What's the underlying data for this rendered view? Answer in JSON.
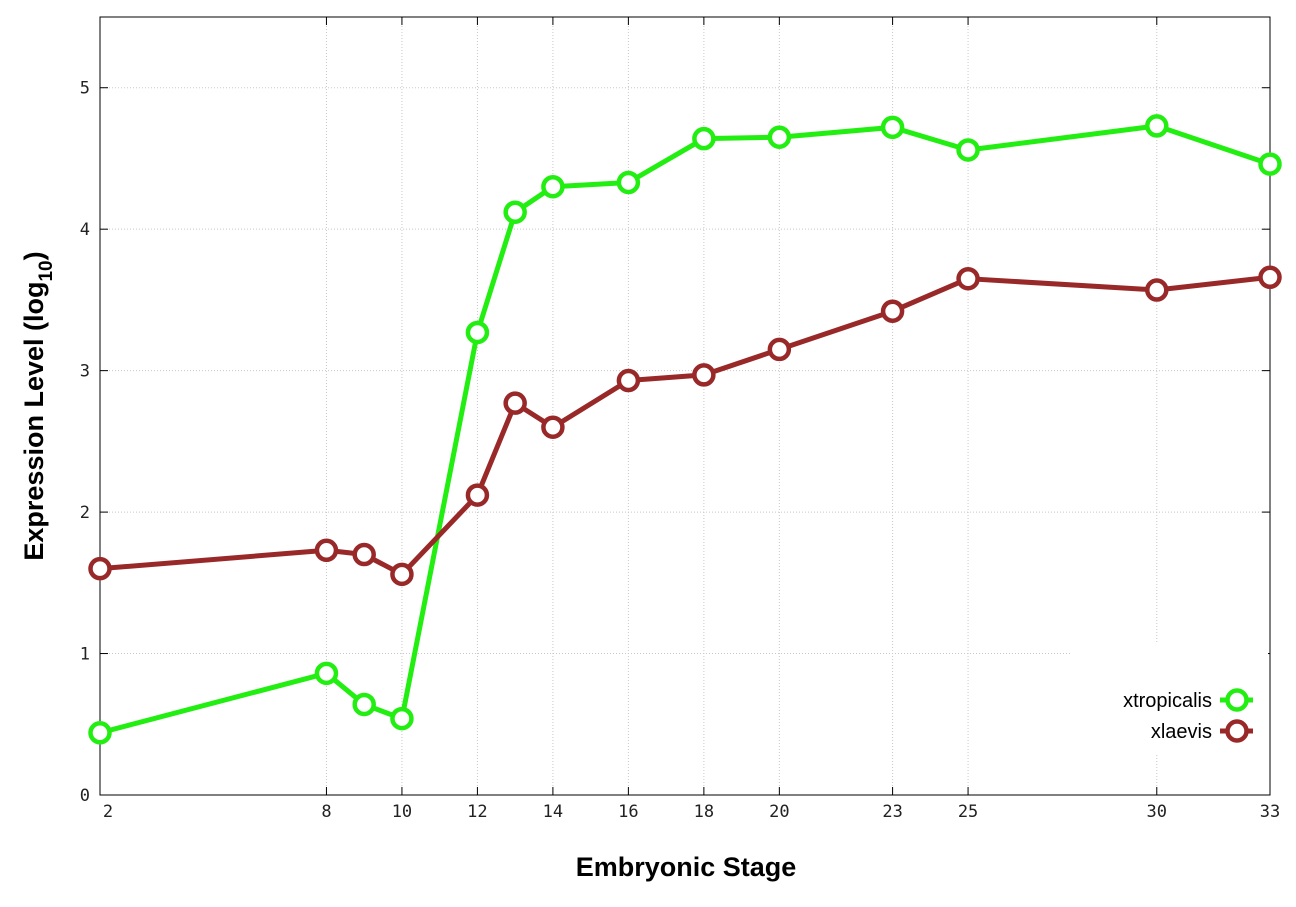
{
  "chart_data": {
    "type": "line",
    "xlabel": "Embryonic Stage",
    "ylabel_main": "Expression Level (log",
    "ylabel_sub": "10",
    "ylabel_close": ")",
    "x_ticks": [
      2,
      8,
      10,
      12,
      14,
      16,
      18,
      20,
      23,
      25,
      30,
      33
    ],
    "y_ticks": [
      0,
      1,
      2,
      3,
      4,
      5
    ],
    "xlim": [
      2,
      33
    ],
    "ylim": [
      0,
      5.5
    ],
    "x": [
      2,
      8,
      9,
      10,
      12,
      13,
      14,
      16,
      18,
      20,
      23,
      25,
      30,
      33
    ],
    "grid": true,
    "legend_position": "bottom-right",
    "series": [
      {
        "name": "xtropicalis",
        "color": "#22ee11",
        "values": [
          0.44,
          0.86,
          0.64,
          0.54,
          3.27,
          4.12,
          4.3,
          4.33,
          4.64,
          4.65,
          4.72,
          4.56,
          4.73,
          4.46
        ]
      },
      {
        "name": "xlaevis",
        "color": "#992929",
        "values": [
          1.6,
          1.73,
          1.7,
          1.56,
          2.12,
          2.77,
          2.6,
          2.93,
          2.97,
          3.15,
          3.42,
          3.65,
          3.57,
          3.66
        ]
      }
    ]
  }
}
